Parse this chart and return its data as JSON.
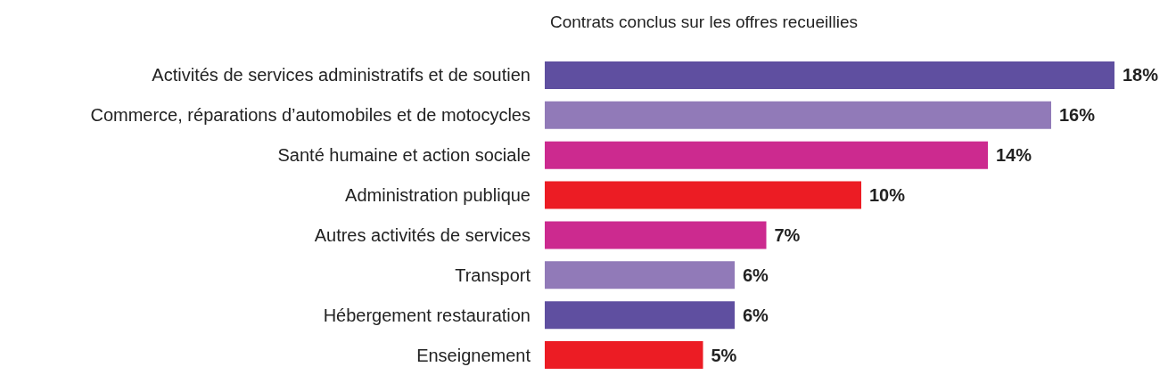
{
  "chart_data": {
    "type": "bar",
    "orientation": "horizontal",
    "title": "Contrats conclus sur les offres recueillies",
    "categories": [
      "Activités de services administratifs et de soutien",
      "Commerce, réparations d’automobiles et de motocycles",
      "Santé humaine et action sociale",
      "Administration publique",
      "Autres activités de services",
      "Transport",
      "Hébergement restauration",
      "Enseignement"
    ],
    "values": [
      18,
      16,
      14,
      10,
      7,
      6,
      6,
      5
    ],
    "value_labels": [
      "18%",
      "16%",
      "14%",
      "10%",
      "7%",
      "6%",
      "6%",
      "5%"
    ],
    "colors": [
      "#5f4fa0",
      "#917ab8",
      "#cc2a8f",
      "#ec1c24",
      "#cc2a8f",
      "#917ab8",
      "#5f4fa0",
      "#ec1c24"
    ],
    "xlim": [
      0,
      18
    ],
    "tick_labels": "y"
  }
}
